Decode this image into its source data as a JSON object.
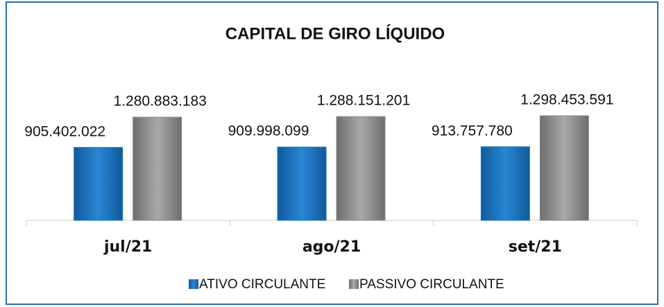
{
  "chart_data": {
    "type": "bar",
    "title": "CAPITAL DE GIRO LÍQUIDO",
    "categories": [
      "jul/21",
      "ago/21",
      "set/21"
    ],
    "series": [
      {
        "name": "ATIVO CIRCULANTE",
        "color": "#1f74bd",
        "values": [
          905402022,
          909998099,
          913757780
        ],
        "value_labels": [
          "905.402.022",
          "909.998.099",
          "913.757.780"
        ]
      },
      {
        "name": "PASSIVO CIRCULANTE",
        "color": "#8c8c8c",
        "values": [
          1280883183,
          1288151201,
          1298453591
        ],
        "value_labels": [
          "1.280.883.183",
          "1.288.151.201",
          "1.298.453.591"
        ]
      }
    ],
    "legend": "bottom"
  }
}
